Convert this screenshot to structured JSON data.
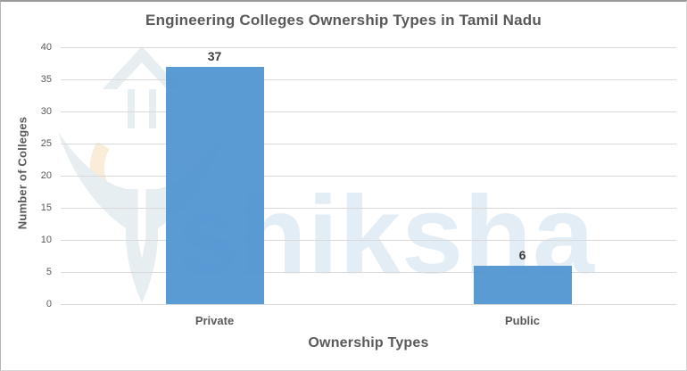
{
  "chart_data": {
    "type": "bar",
    "title": "Engineering Colleges Ownership Types in Tamil Nadu",
    "xlabel": "Ownership Types",
    "ylabel": "Number of Colleges",
    "categories": [
      "Private",
      "Public"
    ],
    "values": [
      37,
      6
    ],
    "ylim": [
      0,
      40
    ],
    "ytick_step": 5,
    "grid": true,
    "legend_position": "none",
    "bar_color": "#4f93d1",
    "gridline_color": "#d9d9d9",
    "data_labels_visible": true
  },
  "watermark": {
    "text": "shiksha",
    "text_color": "#e2edf5",
    "logo_blue": "#e6eef1",
    "logo_orange": "#f9ecd9",
    "logo_white": "#ffffff"
  },
  "colors": {
    "title_text": "#595959",
    "axis_text": "#595959",
    "value_label_text": "#3b3b3b",
    "background": "#ffffff"
  }
}
